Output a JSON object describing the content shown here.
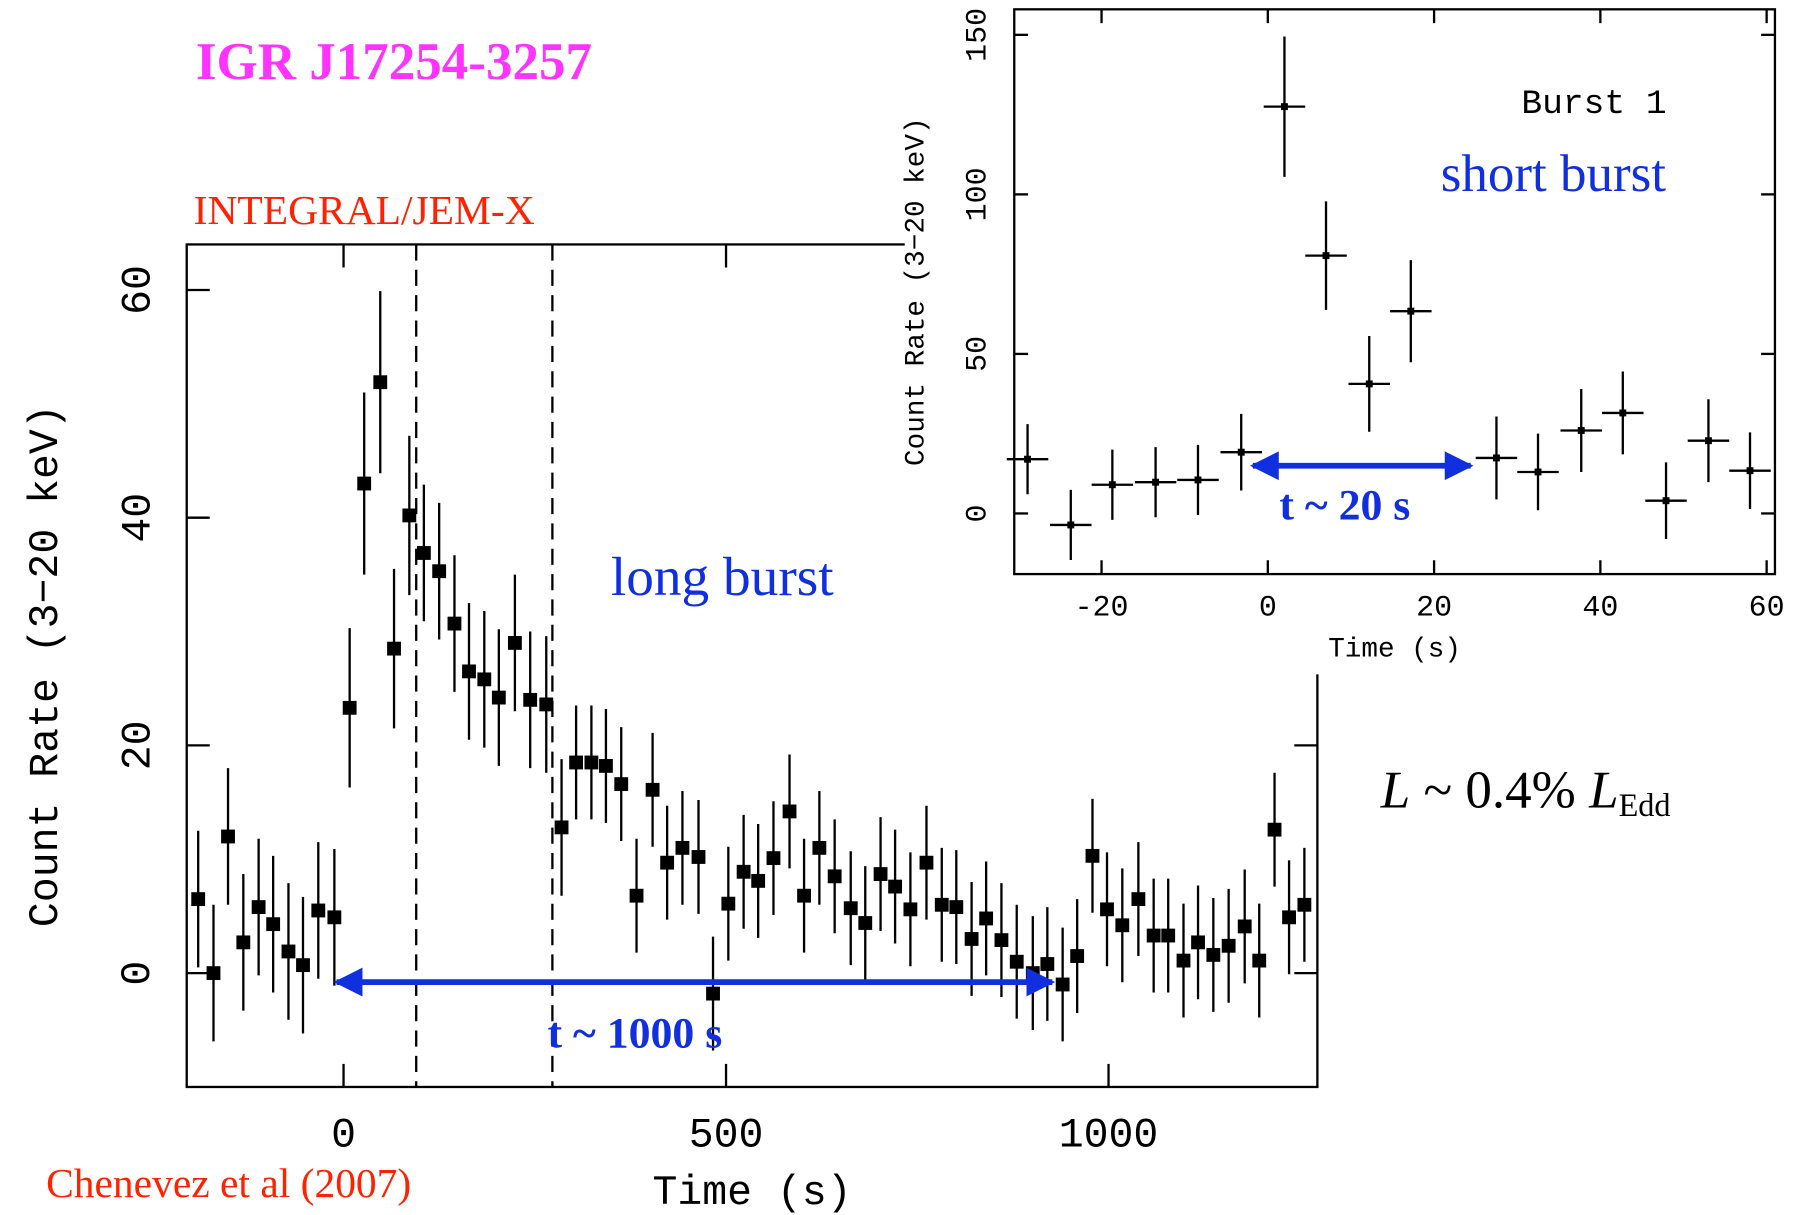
{
  "chart_data": [
    {
      "type": "scatter",
      "title": "IGR J17254-3257",
      "subtitle": "INTEGRAL/JEM-X",
      "source": "Chenevez et al (2007)",
      "x_label": "Time (s)",
      "y_label": "Count Rate (3−20 keV)",
      "annotations": [
        "long burst",
        "t ~ 1000 s"
      ],
      "luminosity": [
        "L",
        " ~ 0.4% ",
        "L",
        "Edd"
      ],
      "color": "#000000",
      "xlim": [
        -205,
        1273
      ],
      "ylim": [
        -10,
        64
      ],
      "xticks": [
        0,
        500,
        1000
      ],
      "yticks": [
        0,
        20,
        40,
        60
      ],
      "vlines": [
        95,
        273
      ],
      "x": [
        -190,
        -170,
        -151,
        -131,
        -111,
        -92,
        -72,
        -53,
        -33,
        -12,
        8,
        27,
        48,
        66,
        86,
        105,
        125,
        145,
        164,
        184,
        203,
        224,
        244,
        265,
        285,
        304,
        324,
        343,
        363,
        383,
        404,
        423,
        443,
        464,
        483,
        503,
        523,
        542,
        562,
        583,
        602,
        622,
        642,
        663,
        682,
        702,
        721,
        741,
        762,
        782,
        801,
        821,
        840,
        860,
        880,
        901,
        920,
        940,
        959,
        979,
        998,
        1018,
        1039,
        1059,
        1078,
        1098,
        1117,
        1137,
        1157,
        1178,
        1197,
        1217,
        1236,
        1256
      ],
      "values": [
        6.5,
        0,
        12,
        2.7,
        5.8,
        4.3,
        1.9,
        0.7,
        5.5,
        4.9,
        23.3,
        43,
        51.9,
        28.5,
        40.2,
        36.9,
        35.3,
        30.7,
        26.5,
        25.8,
        24.2,
        29,
        24,
        23.6,
        12.8,
        18.5,
        18.5,
        18.2,
        16.6,
        6.8,
        16.1,
        9.7,
        11,
        10.2,
        -1.8,
        6.1,
        8.9,
        8.1,
        10.1,
        14.2,
        6.8,
        11,
        8.5,
        5.7,
        4.4,
        8.7,
        7.6,
        5.6,
        9.7,
        6,
        5.8,
        3,
        4.8,
        2.9,
        1,
        0,
        0.8,
        -1,
        1.5,
        10.3,
        5.6,
        4.2,
        6.5,
        3.3,
        3.3,
        1.1,
        2.7,
        1.6,
        2.4,
        4.1,
        1.1,
        12.6,
        4.9,
        6
      ],
      "errors": [
        6,
        6,
        6,
        6,
        6,
        6,
        6,
        6,
        6,
        6,
        7,
        8,
        8,
        7,
        7,
        6,
        6,
        6,
        6,
        6,
        6,
        6,
        6,
        6,
        6,
        5,
        5,
        5,
        5,
        5,
        5,
        5,
        5,
        5,
        5,
        5,
        5,
        5,
        5,
        5,
        5,
        5,
        5,
        5,
        5,
        5,
        5,
        5,
        5,
        5,
        5,
        5,
        5,
        5,
        5,
        5,
        5,
        5,
        5,
        5,
        5,
        5,
        5,
        5,
        5,
        5,
        5,
        5,
        5,
        5,
        5,
        5,
        5,
        5
      ]
    },
    {
      "type": "scatter",
      "title": "Burst 1",
      "x_label": "Time (s)",
      "y_label": "Count Rate (3−20 keV)",
      "annotations": [
        "short burst",
        "t ~ 20 s"
      ],
      "color": "#000000",
      "xlim": [
        -30.5,
        61
      ],
      "ylim": [
        -19,
        158
      ],
      "xticks": [
        -20,
        0,
        20,
        40,
        60
      ],
      "yticks": [
        0,
        50,
        100,
        150
      ],
      "x": [
        -28.9,
        -23.7,
        -18.7,
        -13.5,
        -8.4,
        -3.2,
        2,
        7,
        12.2,
        17.2,
        27.5,
        32.5,
        37.7,
        42.7,
        47.9,
        53,
        58
      ],
      "values": [
        17,
        -3.6,
        9,
        9.8,
        10.5,
        19.2,
        127.5,
        80.8,
        40.6,
        63.4,
        17.4,
        13,
        26,
        31.5,
        4,
        22.8,
        13.4
      ],
      "errors": [
        11,
        11,
        11,
        11,
        11,
        12,
        22,
        17,
        15,
        16,
        13,
        12,
        13,
        13,
        12,
        13,
        12
      ]
    }
  ]
}
